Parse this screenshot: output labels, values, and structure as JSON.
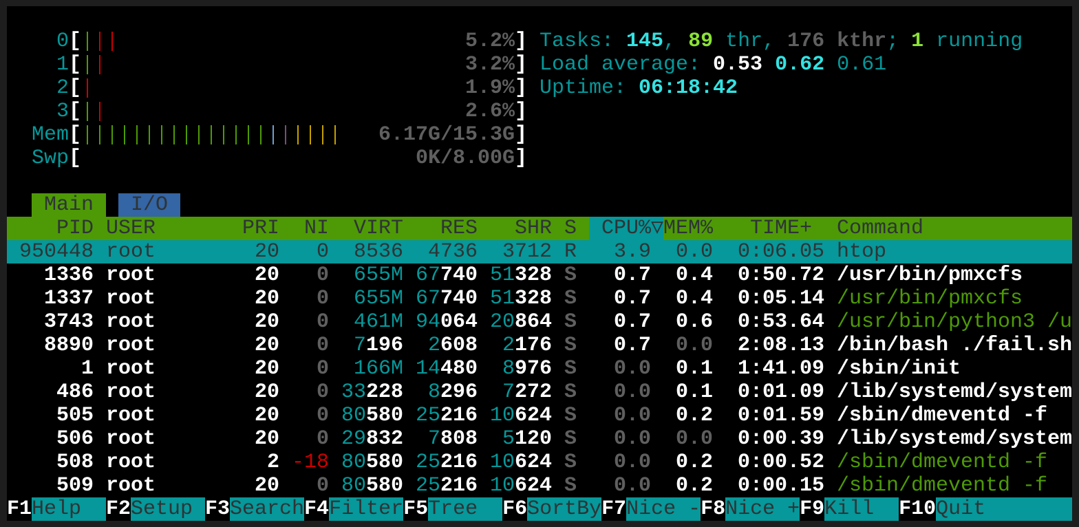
{
  "meters": {
    "cpus": [
      {
        "label": "0",
        "value": "5.2%",
        "segments": [
          "green",
          "red",
          "red"
        ]
      },
      {
        "label": "1",
        "value": "3.2%",
        "segments": [
          "green",
          "red"
        ]
      },
      {
        "label": "2",
        "value": "1.9%",
        "segments": [
          "red"
        ]
      },
      {
        "label": "3",
        "value": "2.6%",
        "segments": [
          "green",
          "red"
        ]
      }
    ],
    "mem": {
      "label": "Mem",
      "value": "6.17G/15.3G",
      "segments": [
        "green",
        "green",
        "green",
        "green",
        "green",
        "green",
        "green",
        "green",
        "green",
        "green",
        "green",
        "green",
        "green",
        "green",
        "green",
        "blue",
        "magenta",
        "yellow",
        "yellow",
        "yellow",
        "yellow"
      ]
    },
    "swp": {
      "label": "Swp",
      "value": "0K/8.00G",
      "segments": []
    }
  },
  "summary": {
    "tasks_label": "Tasks: ",
    "tasks": "145",
    "sep": ", ",
    "threads": "89",
    "thr_label": " thr, ",
    "kthreads": "176 kthr",
    "semi": "; ",
    "running": "1",
    "running_label": " running",
    "load_label": "Load average: ",
    "load1": "0.53",
    "load5": "0.62",
    "load15": "0.61",
    "uptime_label": "Uptime: ",
    "uptime": "06:18:42"
  },
  "tabs": [
    {
      "label": "Main",
      "active": true
    },
    {
      "label": "I/O",
      "active": false
    }
  ],
  "columns": [
    "PID",
    "USER",
    "PRI",
    "NI",
    "VIRT",
    "RES",
    "SHR",
    "S",
    "CPU%",
    "MEM%",
    "TIME+",
    "Command"
  ],
  "sort_column": "CPU%",
  "sort_indicator": "▽",
  "processes": [
    {
      "pid": "950448",
      "user": "root",
      "pri": "20",
      "ni": "0",
      "virt": "8536",
      "res": "4736",
      "shr": "3712",
      "s": "R",
      "cpu": "3.9",
      "mem": "0.0",
      "time": "0:06.05",
      "command": "htop",
      "selected": true
    },
    {
      "pid": "1336",
      "user": "root",
      "pri": "20",
      "ni": "0",
      "virt": "655M",
      "res": "67740",
      "shr": "51328",
      "s": "S",
      "cpu": "0.7",
      "mem": "0.4",
      "time": "0:50.72",
      "command": "/usr/bin/pmxcfs"
    },
    {
      "pid": "1337",
      "user": "root",
      "pri": "20",
      "ni": "0",
      "virt": "655M",
      "res": "67740",
      "shr": "51328",
      "s": "S",
      "cpu": "0.7",
      "mem": "0.4",
      "time": "0:05.14",
      "command": "/usr/bin/pmxcfs",
      "thread": true
    },
    {
      "pid": "3743",
      "user": "root",
      "pri": "20",
      "ni": "0",
      "virt": "461M",
      "res": "94064",
      "shr": "20864",
      "s": "S",
      "cpu": "0.7",
      "mem": "0.6",
      "time": "0:53.64",
      "command": "/usr/bin/python3 /u",
      "thread": true
    },
    {
      "pid": "8890",
      "user": "root",
      "pri": "20",
      "ni": "0",
      "virt": "7196",
      "res": "2608",
      "shr": "2176",
      "s": "S",
      "cpu": "0.7",
      "mem": "0.0",
      "time": "2:08.13",
      "command": "/bin/bash ./fail.sh"
    },
    {
      "pid": "1",
      "user": "root",
      "pri": "20",
      "ni": "0",
      "virt": "166M",
      "res": "14480",
      "shr": "8976",
      "s": "S",
      "cpu": "0.0",
      "mem": "0.1",
      "time": "1:41.09",
      "command": "/sbin/init"
    },
    {
      "pid": "486",
      "user": "root",
      "pri": "20",
      "ni": "0",
      "virt": "33228",
      "res": "8296",
      "shr": "7272",
      "s": "S",
      "cpu": "0.0",
      "mem": "0.1",
      "time": "0:01.09",
      "command": "/lib/systemd/system"
    },
    {
      "pid": "505",
      "user": "root",
      "pri": "20",
      "ni": "0",
      "virt": "80580",
      "res": "25216",
      "shr": "10624",
      "s": "S",
      "cpu": "0.0",
      "mem": "0.2",
      "time": "0:01.59",
      "command": "/sbin/dmeventd -f"
    },
    {
      "pid": "506",
      "user": "root",
      "pri": "20",
      "ni": "0",
      "virt": "29832",
      "res": "7808",
      "shr": "5120",
      "s": "S",
      "cpu": "0.0",
      "mem": "0.0",
      "time": "0:00.39",
      "command": "/lib/systemd/system"
    },
    {
      "pid": "508",
      "user": "root",
      "pri": "2",
      "ni": "-18",
      "virt": "80580",
      "res": "25216",
      "shr": "10624",
      "s": "S",
      "cpu": "0.0",
      "mem": "0.2",
      "time": "0:00.52",
      "command": "/sbin/dmeventd -f",
      "thread": true
    },
    {
      "pid": "509",
      "user": "root",
      "pri": "20",
      "ni": "0",
      "virt": "80580",
      "res": "25216",
      "shr": "10624",
      "s": "S",
      "cpu": "0.0",
      "mem": "0.2",
      "time": "0:00.15",
      "command": "/sbin/dmeventd -f",
      "thread": true
    }
  ],
  "function_keys": [
    {
      "key": "F1",
      "label": "Help"
    },
    {
      "key": "F2",
      "label": "Setup"
    },
    {
      "key": "F3",
      "label": "Search"
    },
    {
      "key": "F4",
      "label": "Filter"
    },
    {
      "key": "F5",
      "label": "Tree"
    },
    {
      "key": "F6",
      "label": "SortBy"
    },
    {
      "key": "F7",
      "label": "Nice -"
    },
    {
      "key": "F8",
      "label": "Nice +"
    },
    {
      "key": "F9",
      "label": "Kill"
    },
    {
      "key": "F10",
      "label": "Quit"
    }
  ],
  "colors": {
    "teal": "#06989a",
    "cyan": "#34e2e2",
    "green": "#4e9a06",
    "bright_green": "#8ae234",
    "red": "#cc0000",
    "tab_io": "#3465a4"
  }
}
